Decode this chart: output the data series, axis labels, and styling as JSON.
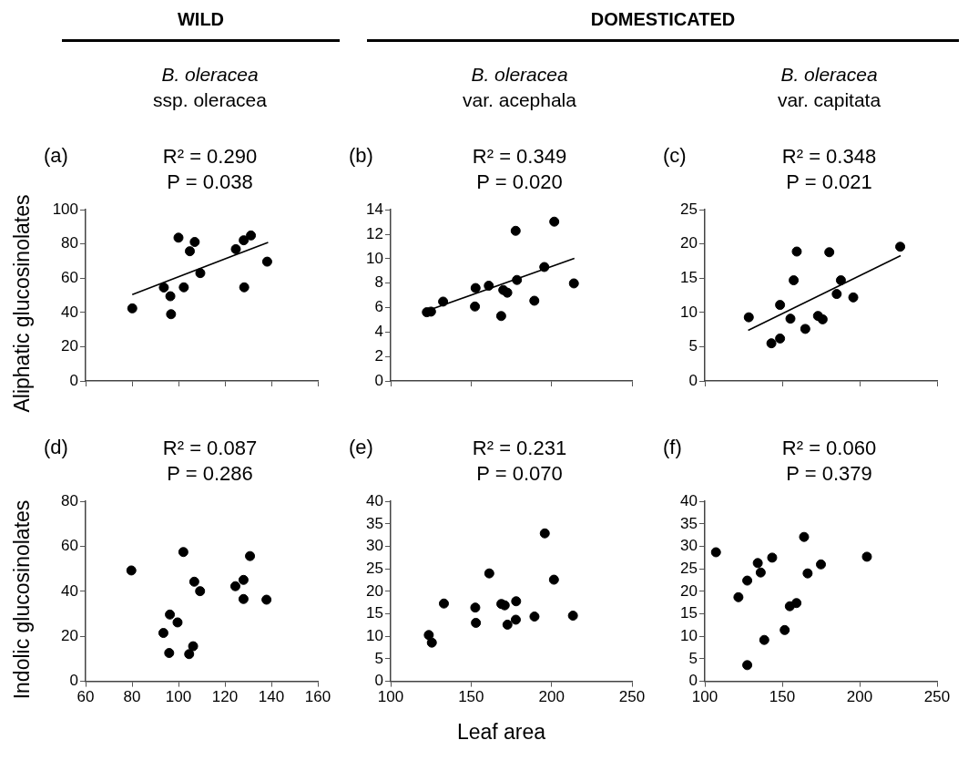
{
  "chart_data": [
    {
      "type": "scatter",
      "title": "(a)",
      "subtitle": "B. oleracea\nssp. oleracea",
      "ylabel": "Aliphatic glucosinolates",
      "annotations": [
        "WILD",
        "R² = 0.290",
        "P = 0.038"
      ],
      "tick_labels": "y",
      "xlim": [
        60,
        160
      ],
      "xticks": [
        60,
        80,
        100,
        120,
        140,
        160
      ],
      "ylim": [
        0,
        100
      ],
      "yticks": [
        0,
        20,
        40,
        60,
        80,
        100
      ],
      "series": [
        {
          "type": "scatter",
          "marker": "circle",
          "color": "#000000",
          "x": [
            80.1,
            93.7,
            96.5,
            96.8,
            100,
            102.3,
            104.9,
            107,
            109.4,
            124.7,
            128.1,
            128.3,
            131.2,
            138.2
          ],
          "values": [
            42.4,
            54.6,
            49.5,
            39,
            83.7,
            54.7,
            75.8,
            81.2,
            63,
            77,
            82.2,
            54.7,
            85,
            69.7
          ]
        },
        {
          "type": "line",
          "marker": "none",
          "color": "#000000",
          "x": [
            80.1,
            138.6
          ],
          "values": [
            50.5,
            81
          ]
        }
      ]
    },
    {
      "type": "scatter",
      "title": "(b)",
      "subtitle": "B. oleracea\nvar. acephala",
      "annotations": [
        "DOMESTICATED",
        "R² = 0.349",
        "P = 0.020"
      ],
      "tick_labels": "y",
      "xlim": [
        100,
        250
      ],
      "xticks": [
        100,
        150,
        200,
        250
      ],
      "ylim": [
        0,
        14
      ],
      "yticks": [
        0,
        2,
        4,
        6,
        8,
        10,
        12,
        14
      ],
      "series": [
        {
          "type": "scatter",
          "marker": "circle",
          "color": "#000000",
          "x": [
            122.5,
            125.1,
            132.6,
            152.4,
            152.8,
            161,
            168.7,
            170,
            172.5,
            177.7,
            178.5,
            189.3,
            195.5,
            201.7,
            213.9
          ],
          "values": [
            5.62,
            5.67,
            6.49,
            6.09,
            7.6,
            7.79,
            5.31,
            7.44,
            7.22,
            12.28,
            8.26,
            6.56,
            9.32,
            13.03,
            7.98
          ]
        },
        {
          "type": "line",
          "marker": "none",
          "color": "#000000",
          "x": [
            121,
            214.2
          ],
          "values": [
            5.67,
            10.03
          ]
        }
      ]
    },
    {
      "type": "scatter",
      "title": "(c)",
      "subtitle": "B. oleracea\nvar. capitata",
      "annotations": [
        "R² = 0.348",
        "P = 0.021"
      ],
      "tick_labels": "y",
      "xlim": [
        100,
        250
      ],
      "xticks": [
        100,
        150,
        200,
        250
      ],
      "ylim": [
        0,
        25
      ],
      "yticks": [
        0,
        5,
        10,
        15,
        20,
        25
      ],
      "series": [
        {
          "type": "scatter",
          "marker": "circle",
          "color": "#000000",
          "x": [
            128.4,
            143,
            148.6,
            148.6,
            155.3,
            157.4,
            159.4,
            164.9,
            173.1,
            176.1,
            180.4,
            185.2,
            187.9,
            195.9,
            226.2
          ],
          "values": [
            9.3,
            5.5,
            6.2,
            11.1,
            9.1,
            14.7,
            18.9,
            7.6,
            9.5,
            9,
            18.8,
            12.7,
            14.7,
            12.2,
            19.6
          ]
        },
        {
          "type": "line",
          "marker": "none",
          "color": "#000000",
          "x": [
            128,
            226.5
          ],
          "values": [
            7.4,
            18.3
          ]
        }
      ]
    },
    {
      "type": "scatter",
      "title": "(d)",
      "ylabel": "Indolic glucosinolates",
      "annotations": [
        "R² = 0.087",
        "P = 0.286"
      ],
      "marker": "circle",
      "xlim": [
        60,
        160
      ],
      "xticks": [
        60,
        80,
        100,
        120,
        140,
        160
      ],
      "ylim": [
        0,
        80
      ],
      "yticks": [
        0,
        20,
        40,
        60,
        80
      ],
      "series": [
        {
          "type": "scatter",
          "color": "#000000",
          "x": [
            79.7,
            93.5,
            96.3,
            96,
            99.6,
            102.1,
            104.6,
            106.3,
            106.8,
            109.3,
            124.5,
            128,
            128,
            130.8,
            137.9
          ],
          "values": [
            49.3,
            21.5,
            29.7,
            12.6,
            26.2,
            57.5,
            12.1,
            15.6,
            44.3,
            40.1,
            42.3,
            45.1,
            36.6,
            55.7,
            36.3
          ]
        }
      ]
    },
    {
      "type": "scatter",
      "title": "(e)",
      "xlabel": "Leaf area",
      "annotations": [
        "R² = 0.231",
        "P = 0.070"
      ],
      "marker": "circle",
      "xlim": [
        100,
        250
      ],
      "xticks": [
        100,
        150,
        200,
        250
      ],
      "ylim": [
        0,
        40
      ],
      "yticks": [
        0,
        5,
        10,
        15,
        20,
        25,
        30,
        35,
        40
      ],
      "series": [
        {
          "type": "scatter",
          "color": "#000000",
          "x": [
            123.7,
            125.6,
            133.1,
            152.6,
            153,
            161.3,
            168.8,
            170.9,
            172.6,
            178,
            177.8,
            189.4,
            195.8,
            201.5,
            213.3
          ],
          "values": [
            10.3,
            8.6,
            17.3,
            16.4,
            13,
            24,
            17.2,
            16.9,
            12.6,
            17.8,
            13.7,
            14.4,
            32.9,
            22.6,
            14.6
          ]
        }
      ]
    },
    {
      "type": "scatter",
      "title": "(f)",
      "annotations": [
        "R² = 0.060",
        "P = 0.379"
      ],
      "marker": "circle",
      "xlim": [
        100,
        250
      ],
      "xticks": [
        100,
        150,
        200,
        250
      ],
      "ylim": [
        0,
        40
      ],
      "yticks": [
        0,
        5,
        10,
        15,
        20,
        25,
        30,
        35,
        40
      ],
      "series": [
        {
          "type": "scatter",
          "color": "#000000",
          "x": [
            107.2,
            121.7,
            127.4,
            127.4,
            134.2,
            136.1,
            138.4,
            143.5,
            151.6,
            154.9,
            159.2,
            164.1,
            166.4,
            175,
            204.7
          ],
          "values": [
            28.7,
            18.7,
            22.4,
            3.6,
            26.3,
            24.2,
            9.2,
            27.5,
            11.4,
            16.7,
            17.4,
            32.1,
            24,
            26,
            27.7
          ]
        }
      ]
    }
  ]
}
